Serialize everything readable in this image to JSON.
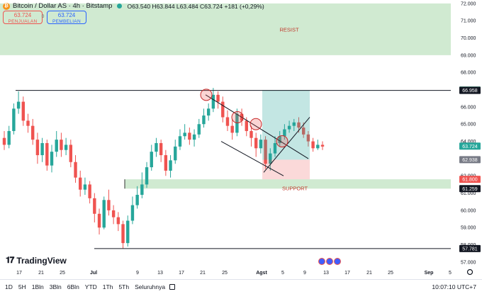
{
  "header": {
    "symbol": "Bitcoin / Dollar AS · 4h · Bitstamp",
    "ohlc": "O63.540 H63.844 L63.484 C63.724 +181 (+0,29%)",
    "sell_price": "63.724",
    "sell_label": "PENJUALAN",
    "spread": "0",
    "buy_price": "63.724",
    "buy_label": "PEMBELIAN",
    "icon": "bitcoin-icon"
  },
  "chart_data": {
    "type": "candlestick",
    "y_axis": {
      "range": [
        56.75,
        72.2
      ],
      "ticks": [
        "72.000",
        "71.000",
        "70.000",
        "69.000",
        "68.000",
        "67.000",
        "66.000",
        "65.000",
        "64.000",
        "63.000",
        "62.000",
        "61.000",
        "60.000",
        "59.000",
        "58.000",
        "57.000"
      ]
    },
    "x_axis": {
      "ticks": [
        "17",
        "21",
        "25",
        "Jul",
        "9",
        "13",
        "17",
        "21",
        "25",
        "Agst",
        "5",
        "9",
        "13",
        "17",
        "21",
        "25",
        "Sep",
        "5"
      ]
    },
    "zones": [
      {
        "label": "RESIST",
        "low": 69.0,
        "high": 72.0,
        "color": "#c8e6c9"
      },
      {
        "label": "SUPPORT",
        "low": 61.259,
        "high": 61.8,
        "color": "#c8e6c9"
      }
    ],
    "horizontal_lines": [
      {
        "value": 66.958,
        "label": "66.958"
      },
      {
        "value": 57.781,
        "label": "57.781"
      }
    ],
    "position": {
      "entry": 62.938,
      "target": 66.984,
      "stop": 61.8
    },
    "price_labels": [
      {
        "value": 66.984,
        "text": "66.984",
        "color": "#4e8f7f"
      },
      {
        "value": 66.958,
        "text": "66.958",
        "color": "#131722"
      },
      {
        "value": 63.724,
        "text": "63.724",
        "color": "#26a69a"
      },
      {
        "value": 62.938,
        "text": "62.938",
        "color": "#787b86"
      },
      {
        "value": 61.8,
        "text": "61.800",
        "color": "#ef5350"
      },
      {
        "value": 61.259,
        "text": "61.259",
        "color": "#131722"
      },
      {
        "value": 57.781,
        "text": "57.781",
        "color": "#131722"
      }
    ],
    "candles": [
      [
        64.2,
        63.8,
        64.6,
        63.5
      ],
      [
        63.8,
        64.6,
        64.9,
        63.6
      ],
      [
        64.6,
        65.9,
        66.2,
        64.4
      ],
      [
        65.9,
        66.3,
        66.9,
        65.6
      ],
      [
        66.3,
        65.2,
        66.6,
        64.9
      ],
      [
        65.2,
        64.9,
        65.6,
        64.5
      ],
      [
        64.9,
        64.1,
        65.3,
        63.8
      ],
      [
        64.1,
        63.2,
        64.5,
        62.7
      ],
      [
        63.2,
        63.9,
        64.2,
        62.8
      ],
      [
        63.9,
        62.6,
        64.1,
        62.3
      ],
      [
        62.6,
        63.4,
        63.8,
        62.2
      ],
      [
        63.4,
        64.1,
        64.6,
        63.1
      ],
      [
        64.1,
        63.5,
        64.5,
        63.1
      ],
      [
        63.5,
        63.8,
        64.2,
        63.2
      ],
      [
        63.8,
        62.8,
        64.1,
        62.5
      ],
      [
        62.8,
        61.9,
        63.2,
        61.6
      ],
      [
        61.9,
        61.2,
        62.3,
        60.8
      ],
      [
        61.2,
        61.5,
        61.9,
        60.9
      ],
      [
        61.5,
        60.7,
        61.7,
        60.4
      ],
      [
        60.7,
        59.8,
        61.0,
        59.3
      ],
      [
        59.8,
        59.0,
        60.1,
        58.6
      ],
      [
        59.0,
        60.6,
        60.8,
        58.9
      ],
      [
        60.6,
        60.0,
        61.2,
        59.7
      ],
      [
        60.0,
        59.6,
        60.3,
        59.2
      ],
      [
        59.6,
        59.2,
        59.9,
        58.8
      ],
      [
        59.2,
        58.1,
        59.4,
        57.8
      ],
      [
        58.1,
        59.4,
        59.7,
        57.9
      ],
      [
        59.4,
        60.3,
        60.8,
        59.2
      ],
      [
        60.3,
        60.9,
        61.4,
        60.1
      ],
      [
        60.9,
        61.5,
        62.2,
        60.7
      ],
      [
        61.5,
        62.5,
        62.8,
        61.3
      ],
      [
        62.5,
        63.4,
        63.8,
        62.3
      ],
      [
        63.4,
        63.9,
        64.2,
        63.1
      ],
      [
        63.9,
        63.2,
        64.1,
        62.8
      ],
      [
        63.2,
        62.3,
        63.5,
        62.0
      ],
      [
        62.3,
        62.9,
        63.2,
        61.9
      ],
      [
        62.9,
        63.7,
        64.1,
        62.7
      ],
      [
        63.7,
        64.3,
        64.7,
        63.5
      ],
      [
        64.3,
        64.5,
        65.0,
        64.1
      ],
      [
        64.5,
        64.1,
        64.8,
        63.8
      ],
      [
        64.1,
        64.4,
        64.7,
        63.7
      ],
      [
        64.4,
        65.0,
        65.3,
        64.2
      ],
      [
        65.0,
        65.5,
        65.9,
        64.8
      ],
      [
        65.5,
        65.9,
        66.2,
        65.2
      ],
      [
        65.9,
        66.7,
        67.1,
        65.7
      ],
      [
        66.7,
        66.3,
        66.9,
        65.9
      ],
      [
        66.3,
        65.4,
        66.6,
        65.1
      ],
      [
        65.4,
        64.9,
        65.8,
        64.6
      ],
      [
        64.9,
        64.5,
        65.3,
        64.1
      ],
      [
        64.5,
        65.6,
        65.9,
        64.3
      ],
      [
        65.6,
        65.2,
        65.9,
        64.9
      ],
      [
        65.2,
        64.6,
        65.4,
        64.3
      ],
      [
        64.6,
        64.2,
        64.9,
        63.7
      ],
      [
        64.2,
        63.6,
        64.5,
        63.1
      ],
      [
        63.6,
        64.1,
        64.4,
        63.3
      ],
      [
        64.1,
        62.7,
        64.3,
        62.4
      ],
      [
        62.7,
        63.3,
        63.6,
        62.3
      ],
      [
        63.3,
        63.9,
        64.3,
        63.1
      ],
      [
        63.9,
        64.3,
        64.6,
        63.7
      ],
      [
        64.3,
        64.7,
        65.0,
        64.1
      ],
      [
        64.7,
        64.9,
        65.2,
        64.5
      ],
      [
        64.9,
        65.1,
        65.3,
        64.6
      ],
      [
        65.1,
        64.8,
        65.4,
        64.5
      ],
      [
        64.8,
        64.4,
        65.1,
        64.2
      ],
      [
        64.4,
        64.0,
        64.6,
        63.7
      ],
      [
        64.0,
        63.6,
        64.2,
        63.4
      ],
      [
        63.6,
        63.8,
        64.1,
        63.5
      ],
      [
        63.8,
        63.7,
        64.0,
        63.5
      ]
    ]
  },
  "branding": {
    "logo_text": "TradingView"
  },
  "toolbar": {
    "timeframes": [
      "1D",
      "5H",
      "1Bln",
      "3Bln",
      "6Bln",
      "YTD",
      "1Th",
      "5Th",
      "Seluruhnya"
    ],
    "clock": "10:07:10 UTC+7"
  }
}
